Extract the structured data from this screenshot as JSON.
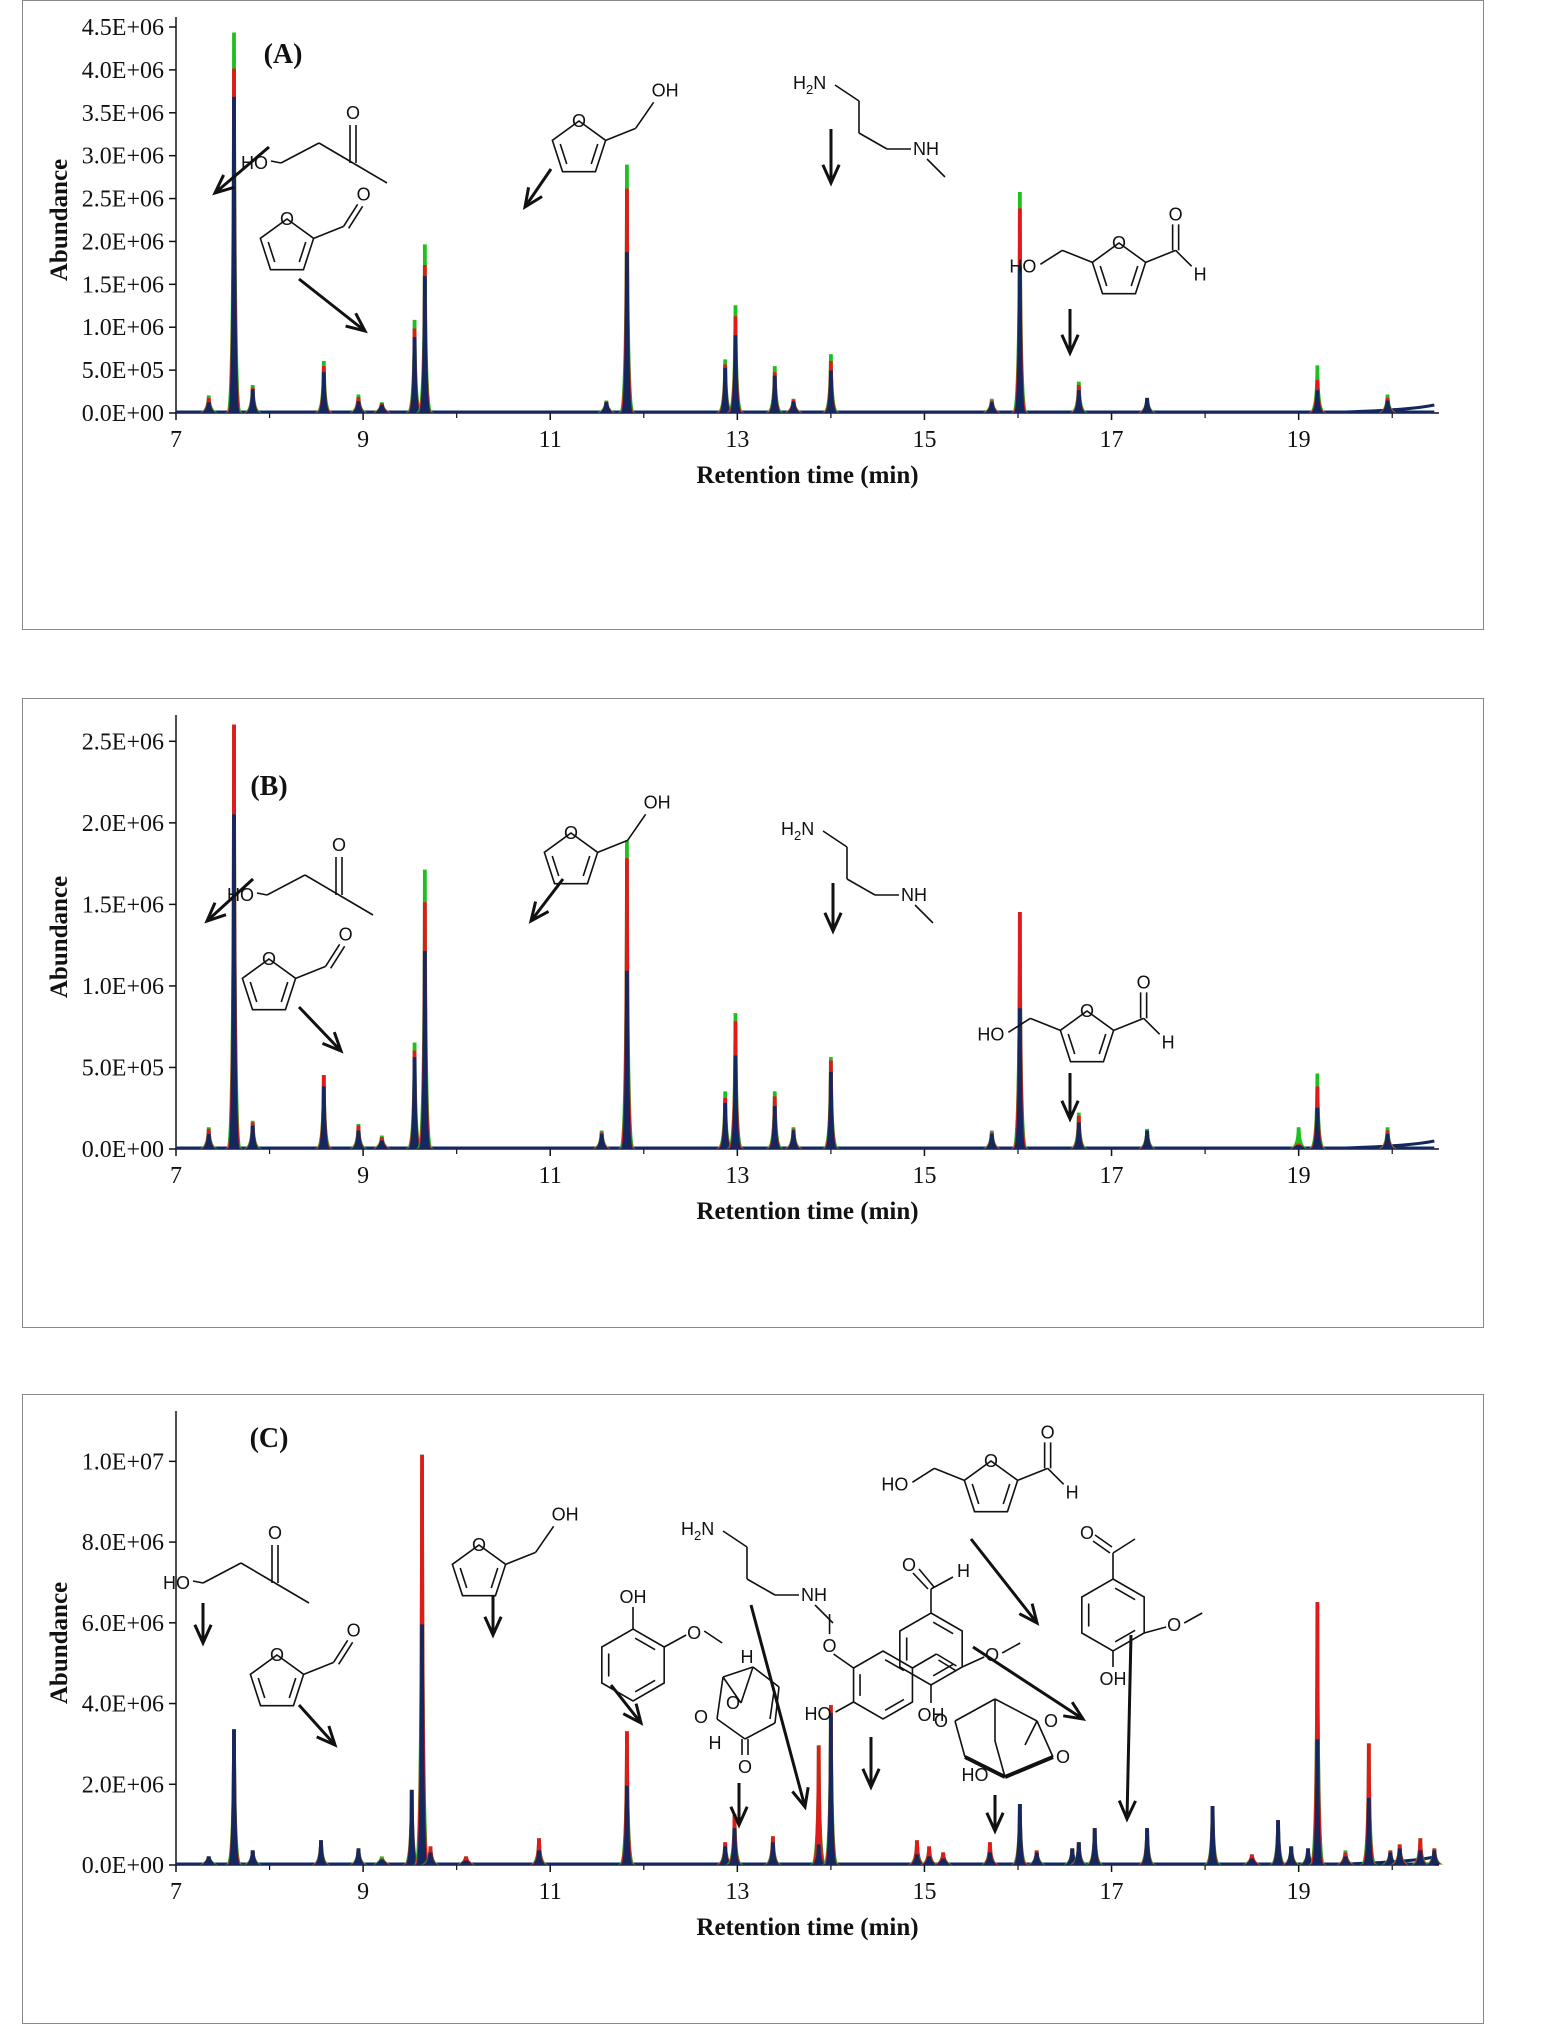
{
  "chart_data": [
    {
      "type": "line",
      "panel_label": "(A)",
      "xlabel": "Retention time (min)",
      "ylabel": "Abundance",
      "xlim": [
        7,
        20.5
      ],
      "ylim": [
        0,
        4500000
      ],
      "x_ticks": [
        7,
        9,
        11,
        13,
        15,
        17,
        19
      ],
      "x_tick_labels": [
        "7",
        "9",
        "11",
        "13",
        "15",
        "17",
        "19"
      ],
      "y_ticks": [
        0,
        500000,
        1000000,
        1500000,
        2000000,
        2500000,
        3000000,
        3500000,
        4000000,
        4500000
      ],
      "y_tick_labels": [
        "0.0E+00",
        "5.0E+05",
        "1.0E+06",
        "1.5E+06",
        "2.0E+06",
        "2.5E+06",
        "3.0E+06",
        "3.5E+06",
        "4.0E+06",
        "4.5E+06"
      ],
      "series_colors": [
        "#1fbf1f",
        "#e01b1b",
        "#14285f"
      ],
      "peaks": [
        {
          "x": 7.35,
          "v": [
            200000,
            170000,
            120000
          ]
        },
        {
          "x": 7.62,
          "v": [
            4430000,
            4010000,
            3680000
          ]
        },
        {
          "x": 7.82,
          "v": [
            320000,
            290000,
            270000
          ]
        },
        {
          "x": 8.58,
          "v": [
            600000,
            540000,
            470000
          ]
        },
        {
          "x": 8.95,
          "v": [
            210000,
            180000,
            130000
          ]
        },
        {
          "x": 9.2,
          "v": [
            120000,
            110000,
            90000
          ]
        },
        {
          "x": 9.55,
          "v": [
            1080000,
            980000,
            880000
          ]
        },
        {
          "x": 9.66,
          "v": [
            1960000,
            1720000,
            1590000
          ]
        },
        {
          "x": 11.6,
          "v": [
            140000,
            130000,
            120000
          ]
        },
        {
          "x": 11.82,
          "v": [
            2890000,
            2610000,
            1870000
          ]
        },
        {
          "x": 12.87,
          "v": [
            620000,
            560000,
            520000
          ]
        },
        {
          "x": 12.98,
          "v": [
            1250000,
            1120000,
            900000
          ]
        },
        {
          "x": 13.4,
          "v": [
            540000,
            470000,
            430000
          ]
        },
        {
          "x": 13.6,
          "v": [
            160000,
            150000,
            130000
          ]
        },
        {
          "x": 14.0,
          "v": [
            680000,
            600000,
            490000
          ]
        },
        {
          "x": 15.72,
          "v": [
            160000,
            140000,
            120000
          ]
        },
        {
          "x": 16.02,
          "v": [
            2570000,
            2380000,
            1710000
          ]
        },
        {
          "x": 16.65,
          "v": [
            360000,
            320000,
            260000
          ]
        },
        {
          "x": 17.38,
          "v": [
            170000,
            160000,
            170000
          ]
        },
        {
          "x": 19.2,
          "v": [
            550000,
            380000,
            260000
          ]
        },
        {
          "x": 19.95,
          "v": [
            210000,
            170000,
            140000
          ]
        }
      ],
      "labels": {
        "hydroxyacetone": [
          "HO",
          "O"
        ],
        "furfural": [
          "O",
          "O"
        ],
        "furfuryl_alcohol": [
          "O",
          "OH"
        ],
        "diamine": [
          "H",
          "2",
          "N",
          "NH"
        ],
        "hmf": [
          "HO",
          "O",
          "O",
          "H"
        ]
      }
    },
    {
      "type": "line",
      "panel_label": "(B)",
      "xlabel": "Retention time (min)",
      "ylabel": "Abundance",
      "xlim": [
        7,
        20.5
      ],
      "ylim": [
        0,
        2600000
      ],
      "x_ticks": [
        7,
        9,
        11,
        13,
        15,
        17,
        19
      ],
      "x_tick_labels": [
        "7",
        "9",
        "11",
        "13",
        "15",
        "17",
        "19"
      ],
      "y_ticks": [
        0,
        500000,
        1000000,
        1500000,
        2000000,
        2500000
      ],
      "y_tick_labels": [
        "0.0E+00",
        "5.0E+05",
        "1.0E+06",
        "1.5E+06",
        "2.0E+06",
        "2.5E+06"
      ],
      "series_colors": [
        "#1fbf1f",
        "#e01b1b",
        "#14285f"
      ],
      "peaks": [
        {
          "x": 7.35,
          "v": [
            130000,
            120000,
            90000
          ]
        },
        {
          "x": 7.62,
          "v": [
            2600000,
            2600000,
            2050000
          ]
        },
        {
          "x": 7.82,
          "v": [
            170000,
            160000,
            140000
          ]
        },
        {
          "x": 8.58,
          "v": [
            450000,
            450000,
            380000
          ]
        },
        {
          "x": 8.95,
          "v": [
            150000,
            140000,
            110000
          ]
        },
        {
          "x": 9.2,
          "v": [
            80000,
            70000,
            50000
          ]
        },
        {
          "x": 9.55,
          "v": [
            650000,
            600000,
            560000
          ]
        },
        {
          "x": 9.66,
          "v": [
            1710000,
            1510000,
            1210000
          ]
        },
        {
          "x": 11.55,
          "v": [
            110000,
            100000,
            90000
          ]
        },
        {
          "x": 11.82,
          "v": [
            1890000,
            1780000,
            1090000
          ]
        },
        {
          "x": 12.87,
          "v": [
            350000,
            310000,
            280000
          ]
        },
        {
          "x": 12.98,
          "v": [
            830000,
            780000,
            570000
          ]
        },
        {
          "x": 13.4,
          "v": [
            350000,
            320000,
            260000
          ]
        },
        {
          "x": 13.6,
          "v": [
            130000,
            120000,
            110000
          ]
        },
        {
          "x": 14.0,
          "v": [
            560000,
            540000,
            470000
          ]
        },
        {
          "x": 15.72,
          "v": [
            110000,
            100000,
            90000
          ]
        },
        {
          "x": 16.02,
          "v": [
            1450000,
            1450000,
            860000
          ]
        },
        {
          "x": 16.65,
          "v": [
            220000,
            200000,
            160000
          ]
        },
        {
          "x": 17.38,
          "v": [
            120000,
            110000,
            110000
          ]
        },
        {
          "x": 19.0,
          "v": [
            130000,
            30000,
            20000
          ]
        },
        {
          "x": 19.2,
          "v": [
            460000,
            380000,
            250000
          ]
        },
        {
          "x": 19.95,
          "v": [
            130000,
            110000,
            90000
          ]
        }
      ],
      "labels": {
        "hydroxyacetone": [
          "HO",
          "O"
        ],
        "furfural": [
          "O",
          "O"
        ],
        "furfuryl_alcohol": [
          "O",
          "OH"
        ],
        "diamine": [
          "H",
          "2",
          "N",
          "NH"
        ],
        "hmf": [
          "HO",
          "O",
          "O",
          "H"
        ]
      }
    },
    {
      "type": "line",
      "panel_label": "(C)",
      "xlabel": "Retention time (min)",
      "ylabel": "Abundance",
      "xlim": [
        7,
        20.5
      ],
      "ylim": [
        0,
        11000000
      ],
      "x_ticks": [
        7,
        9,
        11,
        13,
        15,
        17,
        19
      ],
      "x_tick_labels": [
        "7",
        "9",
        "11",
        "13",
        "15",
        "17",
        "19"
      ],
      "y_ticks": [
        0,
        2000000,
        4000000,
        6000000,
        8000000,
        10000000
      ],
      "y_tick_labels": [
        "0.0E+00",
        "2.0E+06",
        "4.0E+06",
        "6.0E+06",
        "8.0E+06",
        "1.0E+07"
      ],
      "series_colors": [
        "#1fbf1f",
        "#e01b1b",
        "#14285f"
      ],
      "peaks": [
        {
          "x": 7.35,
          "v": [
            200000,
            200000,
            200000
          ]
        },
        {
          "x": 7.62,
          "v": [
            3350000,
            3350000,
            3350000
          ]
        },
        {
          "x": 7.82,
          "v": [
            350000,
            350000,
            350000
          ]
        },
        {
          "x": 8.55,
          "v": [
            600000,
            600000,
            600000
          ]
        },
        {
          "x": 8.95,
          "v": [
            400000,
            400000,
            400000
          ]
        },
        {
          "x": 9.2,
          "v": [
            200000,
            150000,
            120000
          ]
        },
        {
          "x": 9.52,
          "v": [
            1850000,
            1850000,
            1850000
          ]
        },
        {
          "x": 9.63,
          "v": [
            10150000,
            10150000,
            5950000
          ]
        },
        {
          "x": 9.72,
          "v": [
            450000,
            450000,
            300000
          ]
        },
        {
          "x": 10.1,
          "v": [
            200000,
            200000,
            100000
          ]
        },
        {
          "x": 10.88,
          "v": [
            650000,
            650000,
            350000
          ]
        },
        {
          "x": 11.82,
          "v": [
            3300000,
            3300000,
            1950000
          ]
        },
        {
          "x": 12.87,
          "v": [
            550000,
            550000,
            450000
          ]
        },
        {
          "x": 12.97,
          "v": [
            1250000,
            1250000,
            900000
          ]
        },
        {
          "x": 13.38,
          "v": [
            700000,
            700000,
            550000
          ]
        },
        {
          "x": 13.87,
          "v": [
            2950000,
            2950000,
            500000
          ]
        },
        {
          "x": 14.0,
          "v": [
            3950000,
            3950000,
            3750000
          ]
        },
        {
          "x": 14.92,
          "v": [
            600000,
            600000,
            250000
          ]
        },
        {
          "x": 15.05,
          "v": [
            450000,
            450000,
            200000
          ]
        },
        {
          "x": 15.2,
          "v": [
            300000,
            300000,
            150000
          ]
        },
        {
          "x": 15.7,
          "v": [
            550000,
            550000,
            300000
          ]
        },
        {
          "x": 16.02,
          "v": [
            1500000,
            1500000,
            1500000
          ]
        },
        {
          "x": 16.2,
          "v": [
            350000,
            350000,
            300000
          ]
        },
        {
          "x": 16.58,
          "v": [
            400000,
            400000,
            400000
          ]
        },
        {
          "x": 16.65,
          "v": [
            550000,
            550000,
            550000
          ]
        },
        {
          "x": 16.82,
          "v": [
            900000,
            900000,
            900000
          ]
        },
        {
          "x": 17.38,
          "v": [
            900000,
            900000,
            900000
          ]
        },
        {
          "x": 18.08,
          "v": [
            1450000,
            1450000,
            1450000
          ]
        },
        {
          "x": 18.5,
          "v": [
            250000,
            250000,
            150000
          ]
        },
        {
          "x": 18.78,
          "v": [
            1100000,
            1100000,
            1100000
          ]
        },
        {
          "x": 18.92,
          "v": [
            450000,
            450000,
            450000
          ]
        },
        {
          "x": 19.1,
          "v": [
            400000,
            400000,
            400000
          ]
        },
        {
          "x": 19.2,
          "v": [
            6500000,
            6500000,
            3100000
          ]
        },
        {
          "x": 19.5,
          "v": [
            350000,
            300000,
            200000
          ]
        },
        {
          "x": 19.75,
          "v": [
            3000000,
            3000000,
            1650000
          ]
        },
        {
          "x": 19.98,
          "v": [
            350000,
            350000,
            300000
          ]
        },
        {
          "x": 20.08,
          "v": [
            500000,
            500000,
            400000
          ]
        },
        {
          "x": 20.3,
          "v": [
            650000,
            650000,
            350000
          ]
        },
        {
          "x": 20.45,
          "v": [
            400000,
            400000,
            350000
          ]
        }
      ],
      "labels": {
        "hydroxyacetone": [
          "HO",
          "O"
        ],
        "furfural": [
          "O",
          "O"
        ],
        "furfuryl_alcohol": [
          "O",
          "OH"
        ],
        "guaiacol": [
          "OH",
          "O"
        ],
        "levoglucosenone": [
          "O",
          "H",
          "O",
          "H",
          "O"
        ],
        "diamine": [
          "H",
          "2",
          "N",
          "NH"
        ],
        "vinylguaiacol": [
          "O",
          "HO"
        ],
        "hmf": [
          "HO",
          "O",
          "O",
          "H"
        ],
        "vanillin": [
          "O",
          "H",
          "O",
          "OH"
        ],
        "levoglucosan": [
          "O",
          "O",
          "O",
          "HO"
        ],
        "acetovanillone": [
          "O",
          "O",
          "OH"
        ]
      }
    }
  ]
}
